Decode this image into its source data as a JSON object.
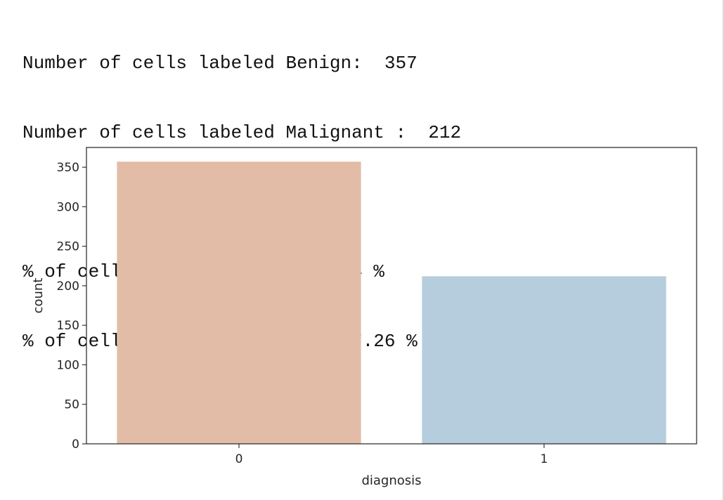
{
  "output": {
    "lines": [
      "Number of cells labeled Benign:  357",
      "Number of cells labeled Malignant :  212",
      "",
      "% of cells labeled Benign 62.74 %",
      "% of cells labeled Malignant 37.26 %"
    ]
  },
  "chart_data": {
    "type": "bar",
    "categories": [
      "0",
      "1"
    ],
    "values": [
      357,
      212
    ],
    "colors": [
      "#e2bca6",
      "#b5cddc"
    ],
    "title": "",
    "xlabel": "diagnosis",
    "ylabel": "count",
    "ylim": [
      0,
      375
    ],
    "yticks": [
      0,
      50,
      100,
      150,
      200,
      250,
      300,
      350
    ],
    "ytick_labels": [
      "0",
      "50",
      "100",
      "150",
      "200",
      "250",
      "300",
      "350"
    ],
    "grid": false,
    "legend": "none"
  }
}
